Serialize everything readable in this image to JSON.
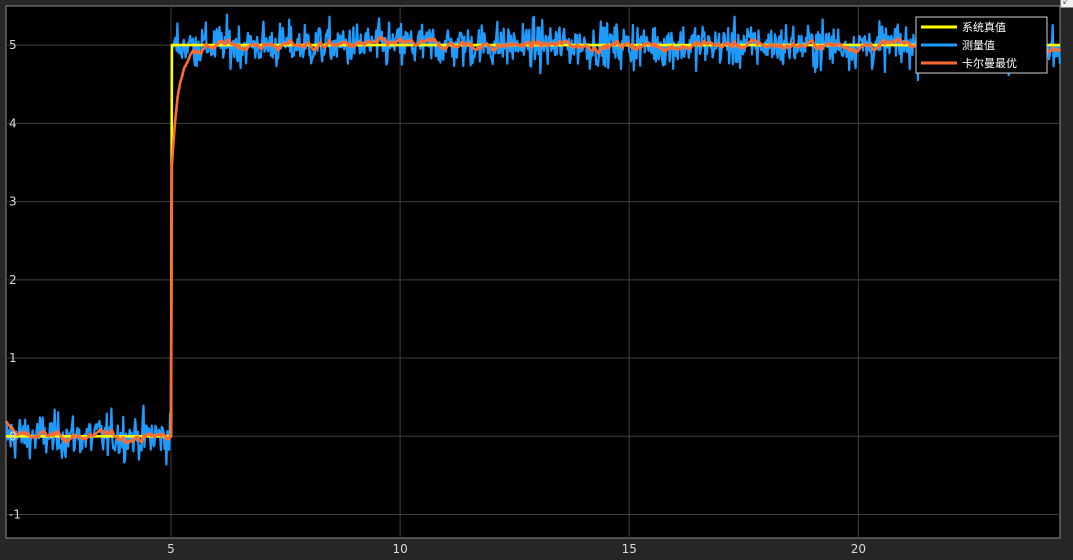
{
  "chart_data": {
    "type": "line",
    "title": "",
    "xlabel": "",
    "ylabel": "",
    "xlim": [
      1.4,
      24.4
    ],
    "ylim": [
      -1.3,
      5.5
    ],
    "grid": true,
    "xticks": [
      5,
      10,
      15,
      20
    ],
    "yticks": [
      -1,
      0,
      1,
      2,
      3,
      4,
      5
    ],
    "legend_position": "top-right",
    "background": "#000000",
    "series": [
      {
        "name": "系统真值",
        "color": "#FFFF00",
        "noise": 0,
        "note_shape": "step 0 to 5 at t=5"
      },
      {
        "name": "测量值",
        "color": "#1E9BFF",
        "noise": 0.2
      },
      {
        "name": "卡尔曼最优",
        "color": "#FF6A33",
        "noise": 0.06
      }
    ],
    "step": {
      "time": 5,
      "low": 0,
      "high": 5
    },
    "sample_step": 0.02
  },
  "toolbar": {
    "icon": "expand-icon",
    "glyph": "⤢"
  }
}
